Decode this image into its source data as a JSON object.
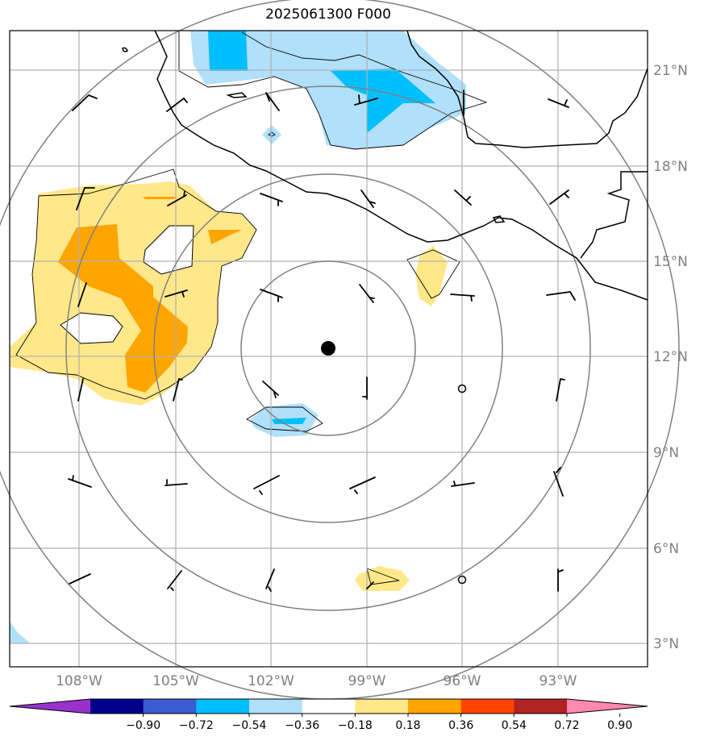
{
  "title": "2025061300 F000",
  "lat_labels": [
    "21°N",
    "18°N",
    "15°N",
    "12°N",
    "9°N",
    "6°N",
    "3°N"
  ],
  "lon_labels": [
    "108°W",
    "105°W",
    "102°W",
    "99°W",
    "96°W",
    "93°W"
  ],
  "colorbar": {
    "tick_labels": [
      "−0.90",
      "−0.72",
      "−0.54",
      "−0.36",
      "−0.18",
      "0.18",
      "0.36",
      "0.54",
      "0.72",
      "0.90"
    ],
    "colors": [
      "#9932cc",
      "#00008b",
      "#3b5bd1",
      "#00bfff",
      "#b0e0fa",
      "#ffffff",
      "#ffe88a",
      "#ffa500",
      "#ff4500",
      "#b22222",
      "#ff88b0"
    ]
  },
  "map": {
    "lat_range": [
      2.3,
      22.3
    ],
    "lon_range": [
      -110.2,
      -90.2
    ],
    "center_marker": {
      "lat": 12.25,
      "lon": -100.4
    },
    "range_ring_color": "#808080",
    "grid_color": "#b0b0b0"
  }
}
